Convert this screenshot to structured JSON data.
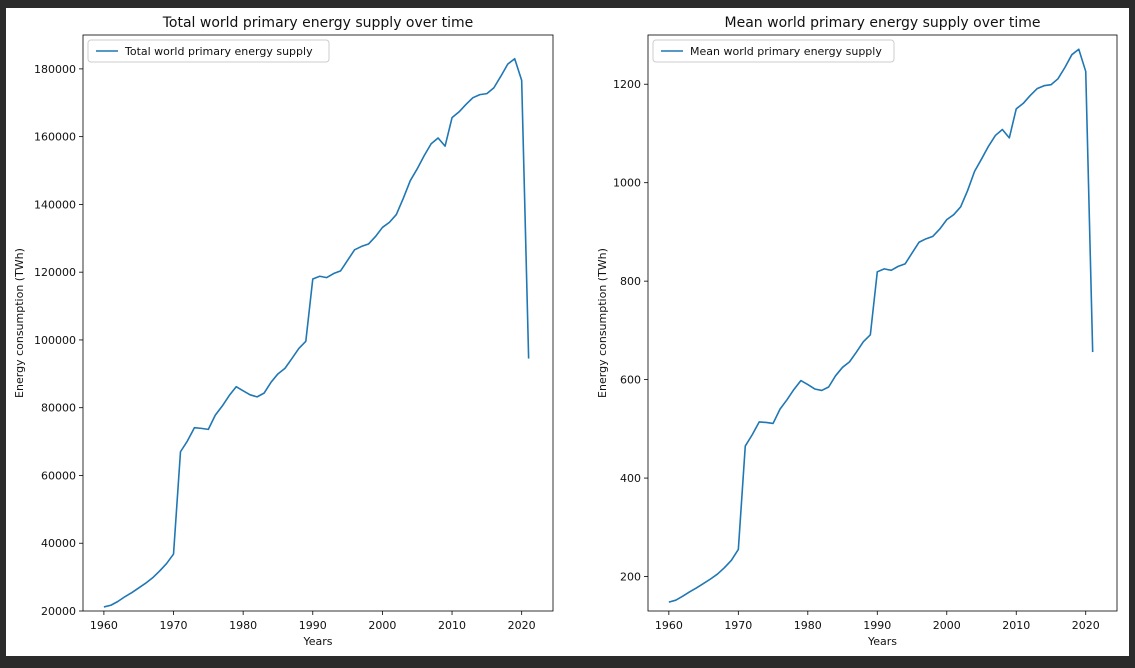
{
  "chart_data": [
    {
      "type": "line",
      "title": "Total world primary energy supply over time",
      "xlabel": "Years",
      "ylabel": "Energy consumption (TWh)",
      "xlim": [
        1957,
        2024.5
      ],
      "ylim": [
        20000,
        190000
      ],
      "xticks": [
        1960,
        1970,
        1980,
        1990,
        2000,
        2010,
        2020
      ],
      "yticks": [
        20000,
        40000,
        60000,
        80000,
        100000,
        120000,
        140000,
        160000,
        180000
      ],
      "grid": false,
      "legend_position": "top-left",
      "color": "#1f77b4",
      "series": [
        {
          "name": "Total world primary energy supply",
          "x": [
            1960,
            1961,
            1962,
            1963,
            1964,
            1965,
            1966,
            1967,
            1968,
            1969,
            1970,
            1971,
            1972,
            1973,
            1974,
            1975,
            1976,
            1977,
            1978,
            1979,
            1980,
            1981,
            1982,
            1983,
            1984,
            1985,
            1986,
            1987,
            1988,
            1989,
            1990,
            1991,
            1992,
            1993,
            1994,
            1995,
            1996,
            1997,
            1998,
            1999,
            2000,
            2001,
            2002,
            2003,
            2004,
            2005,
            2006,
            2007,
            2008,
            2009,
            2010,
            2011,
            2012,
            2013,
            2014,
            2015,
            2016,
            2017,
            2018,
            2019,
            2020,
            2021
          ],
          "values": [
            21200,
            21700,
            22800,
            24200,
            25400,
            26800,
            28200,
            29800,
            31800,
            34000,
            36800,
            67000,
            70200,
            74100,
            73900,
            73600,
            77800,
            80500,
            83600,
            86200,
            85000,
            83800,
            83200,
            84300,
            87500,
            90000,
            91600,
            94500,
            97500,
            99600,
            118000,
            118800,
            118400,
            119600,
            120400,
            123500,
            126600,
            127600,
            128300,
            130500,
            133200,
            134700,
            137000,
            141800,
            147000,
            150500,
            154400,
            157900,
            159600,
            157200,
            165600,
            167300,
            169500,
            171500,
            172400,
            172700,
            174400,
            177800,
            181400,
            183000,
            176600,
            94500
          ]
        }
      ]
    },
    {
      "type": "line",
      "title": "Mean world primary energy supply over time",
      "xlabel": "Years",
      "ylabel": "Energy consumption (TWh)",
      "xlim": [
        1957,
        2024.5
      ],
      "ylim": [
        130,
        1300
      ],
      "xticks": [
        1960,
        1970,
        1980,
        1990,
        2000,
        2010,
        2020
      ],
      "yticks": [
        200,
        400,
        600,
        800,
        1000,
        1200
      ],
      "grid": false,
      "legend_position": "top-left",
      "color": "#1f77b4",
      "series": [
        {
          "name": "Mean world primary energy supply",
          "x": [
            1960,
            1961,
            1962,
            1963,
            1964,
            1965,
            1966,
            1967,
            1968,
            1969,
            1970,
            1971,
            1972,
            1973,
            1974,
            1975,
            1976,
            1977,
            1978,
            1979,
            1980,
            1981,
            1982,
            1983,
            1984,
            1985,
            1986,
            1987,
            1988,
            1989,
            1990,
            1991,
            1992,
            1993,
            1994,
            1995,
            1996,
            1997,
            1998,
            1999,
            2000,
            2001,
            2002,
            2003,
            2004,
            2005,
            2006,
            2007,
            2008,
            2009,
            2010,
            2011,
            2012,
            2013,
            2014,
            2015,
            2016,
            2017,
            2018,
            2019,
            2020,
            2021
          ],
          "values": [
            148,
            152,
            160,
            169,
            177,
            186,
            195,
            205,
            218,
            233,
            255,
            465,
            488,
            514,
            513,
            511,
            540,
            559,
            580,
            598,
            590,
            581,
            578,
            585,
            608,
            625,
            636,
            656,
            677,
            691,
            819,
            825,
            822,
            830,
            835,
            857,
            879,
            886,
            891,
            906,
            925,
            935,
            951,
            984,
            1023,
            1048,
            1074,
            1096,
            1108,
            1091,
            1150,
            1161,
            1177,
            1191,
            1197,
            1199,
            1211,
            1234,
            1260,
            1271,
            1226,
            656
          ]
        }
      ]
    }
  ]
}
